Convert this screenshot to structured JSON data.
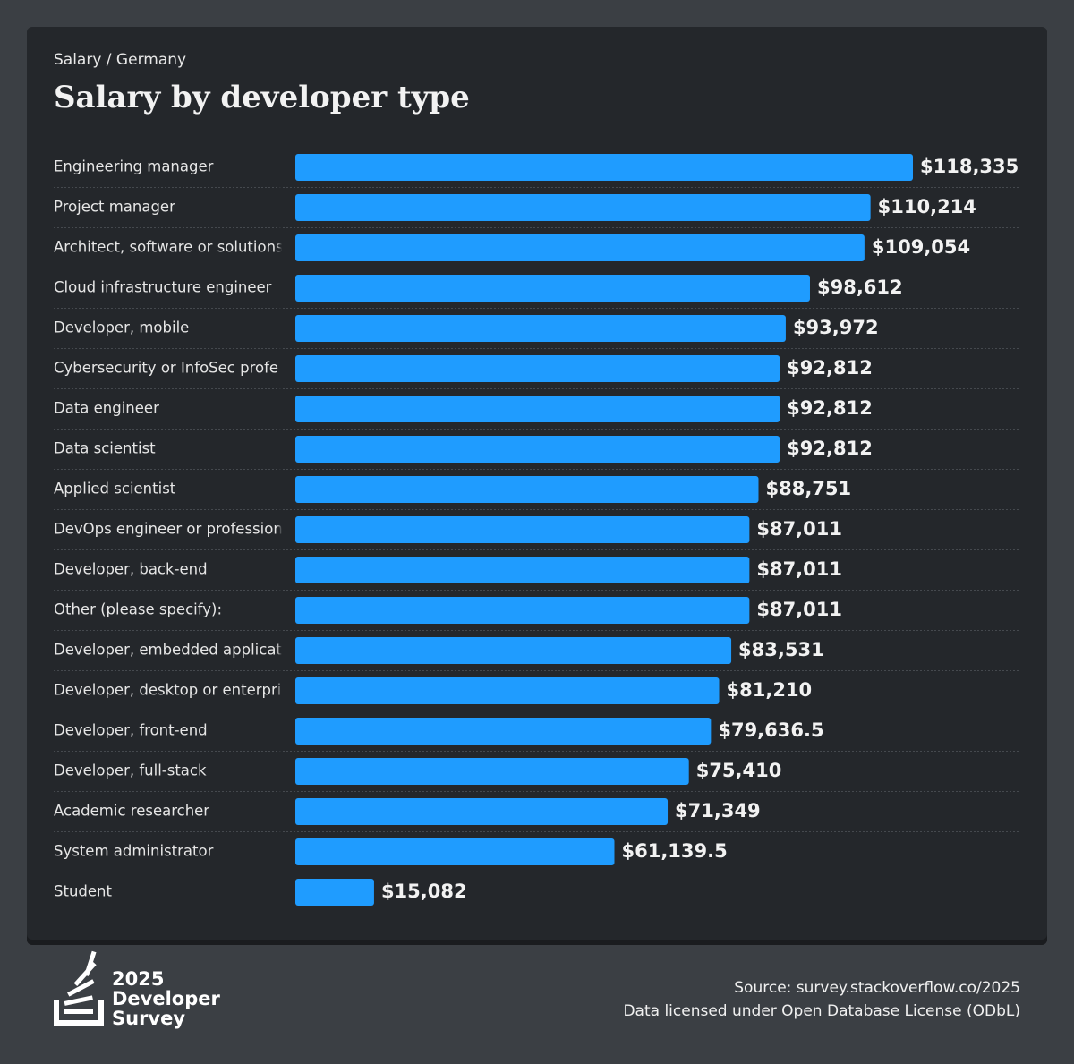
{
  "chart_data": {
    "type": "bar",
    "orientation": "horizontal",
    "subtitle": "Salary / Germany",
    "title": "Salary by developer type",
    "categories": [
      "Engineering manager",
      "Project manager",
      "Architect, software or solutions",
      "Cloud infrastructure engineer",
      "Developer, mobile",
      "Cybersecurity or InfoSec profe",
      "Data engineer",
      "Data scientist",
      "Applied scientist",
      "DevOps engineer or profession",
      "Developer, back-end",
      "Other (please specify):",
      "Developer, embedded applicat",
      "Developer, desktop or enterpri",
      "Developer, front-end",
      "Developer, full-stack",
      "Academic researcher",
      "System administrator",
      "Student"
    ],
    "values": [
      118335,
      110214,
      109054,
      98612,
      93972,
      92812,
      92812,
      92812,
      88751,
      87011,
      87011,
      87011,
      83531,
      81210,
      79636.5,
      75410,
      71349,
      61139.5,
      15082
    ],
    "value_labels": [
      "$118,335",
      "$110,214",
      "$109,054",
      "$98,612",
      "$93,972",
      "$92,812",
      "$92,812",
      "$92,812",
      "$88,751",
      "$87,011",
      "$87,011",
      "$87,011",
      "$83,531",
      "$81,210",
      "$79,636.5",
      "$75,410",
      "$71,349",
      "$61,139.5",
      "$15,082"
    ],
    "color": "#1f9cff"
  },
  "footer": {
    "logo_lines": [
      "2025",
      "Developer",
      "Survey"
    ],
    "source": "Source: survey.stackoverflow.co/2025",
    "license": "Data licensed under Open Database License (ODbL)"
  }
}
